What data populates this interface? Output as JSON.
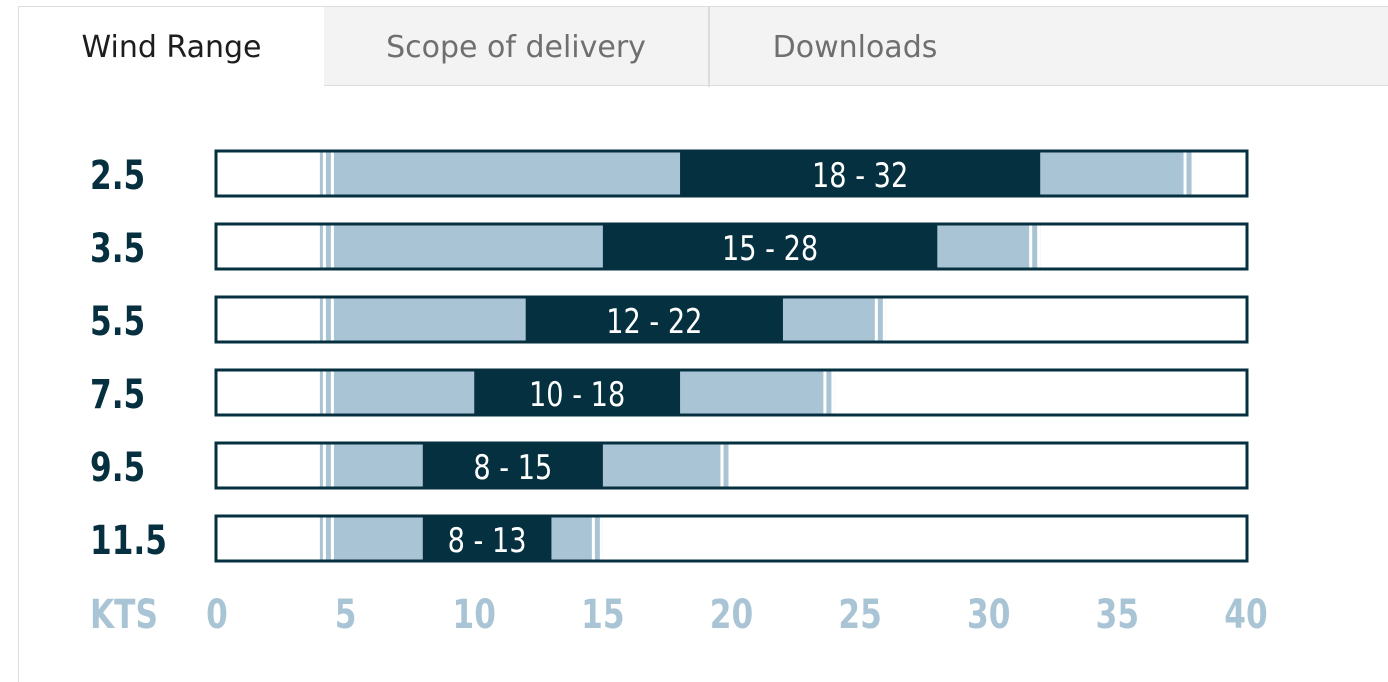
{
  "tabs": [
    {
      "label": "Wind Range",
      "active": true
    },
    {
      "label": "Scope of delivery",
      "active": false
    },
    {
      "label": "Downloads",
      "active": false
    }
  ],
  "colors": {
    "dark": "#04303f",
    "light": "#a9c4d4",
    "axis_text": "#a9c4d4",
    "row_label": "#06303f",
    "border": "#06303f"
  },
  "chart_data": {
    "type": "bar",
    "orientation": "horizontal-range",
    "x_axis": {
      "unit_label": "KTS",
      "ticks": [
        0,
        5,
        10,
        15,
        20,
        25,
        30,
        35,
        40
      ],
      "xlim": [
        0,
        40
      ]
    },
    "rows": [
      {
        "size": "2.5",
        "range_label": "18 - 32",
        "ideal": [
          18,
          32
        ],
        "usable": [
          4,
          38
        ]
      },
      {
        "size": "3.5",
        "range_label": "15 - 28",
        "ideal": [
          15,
          28
        ],
        "usable": [
          4,
          32
        ]
      },
      {
        "size": "5.5",
        "range_label": "12 - 22",
        "ideal": [
          12,
          22
        ],
        "usable": [
          4,
          26
        ]
      },
      {
        "size": "7.5",
        "range_label": "10 - 18",
        "ideal": [
          10,
          18
        ],
        "usable": [
          4,
          24
        ]
      },
      {
        "size": "9.5",
        "range_label": "8 - 15",
        "ideal": [
          8,
          15
        ],
        "usable": [
          4,
          20
        ]
      },
      {
        "size": "11.5",
        "range_label": "8 - 13",
        "ideal": [
          8,
          13
        ],
        "usable": [
          4,
          15
        ]
      }
    ]
  }
}
